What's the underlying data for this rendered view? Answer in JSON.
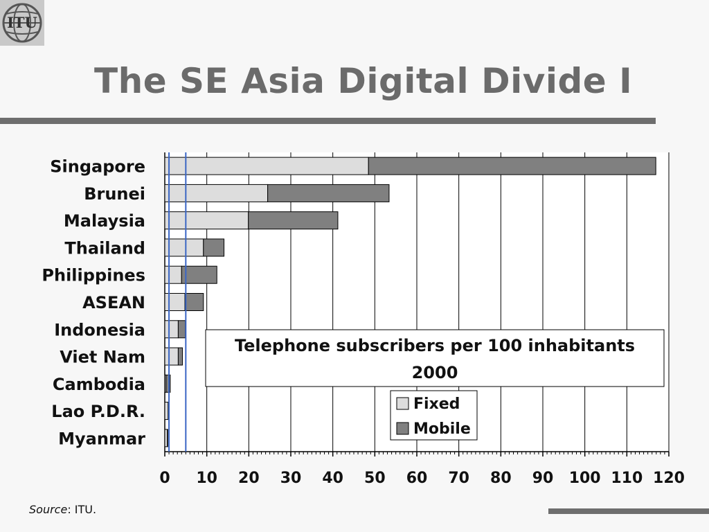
{
  "page": {
    "title": "The SE Asia Digital Divide I",
    "source_label": "Source",
    "source_value": ": ITU."
  },
  "logo": {
    "text": "ITU",
    "icon": "itu-globe-logo"
  },
  "colors": {
    "fixed": "#dddddd",
    "mobile": "#808080",
    "reference_line": "#3a66c4",
    "title": "#6b6b6b",
    "rule": "#6e6e6e"
  },
  "chart_data": {
    "type": "bar",
    "orientation": "horizontal",
    "stacked": true,
    "title": "Telephone subscribers per 100 inhabitants\n2000",
    "categories": [
      "Singapore",
      "Brunei",
      "Malaysia",
      "Thailand",
      "Philippines",
      "ASEAN",
      "Indonesia",
      "Viet Nam",
      "Cambodia",
      "Lao P.D.R.",
      "Myanmar"
    ],
    "series": [
      {
        "name": "Fixed",
        "values": [
          48.5,
          24.5,
          19.9,
          9.2,
          4.0,
          4.8,
          3.2,
          3.2,
          0.3,
          0.8,
          0.6
        ]
      },
      {
        "name": "Mobile",
        "values": [
          68.4,
          28.9,
          21.3,
          4.9,
          8.4,
          4.4,
          1.7,
          1.0,
          1.0,
          0.2,
          0.1
        ]
      }
    ],
    "xlim": [
      0,
      120
    ],
    "xticks": [
      "0",
      "10",
      "20",
      "30",
      "40",
      "50",
      "60",
      "70",
      "80",
      "90",
      "100",
      "110",
      "120"
    ],
    "reference_lines": [
      1,
      5
    ],
    "grid": true,
    "legend_position": "bottom-center"
  }
}
